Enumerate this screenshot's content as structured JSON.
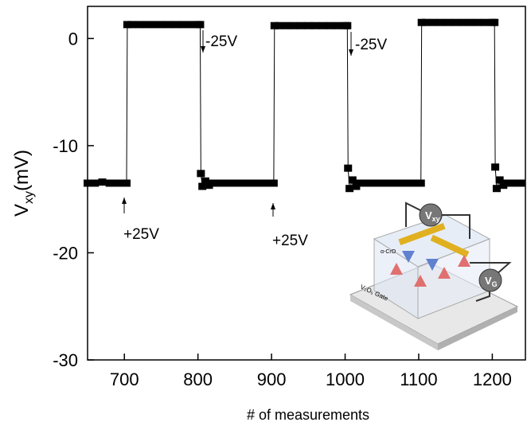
{
  "chart_data": {
    "type": "line",
    "ylabel": {
      "base": "V",
      "sub": "xy",
      "unit": "(mV)"
    },
    "xlabel": "# of measurements",
    "x": [
      650,
      660,
      670,
      680,
      690,
      700,
      703,
      704,
      710,
      720,
      730,
      740,
      750,
      760,
      770,
      780,
      790,
      800,
      803,
      804,
      806,
      810,
      815,
      820,
      830,
      840,
      850,
      860,
      870,
      880,
      890,
      900,
      903,
      904,
      910,
      920,
      930,
      940,
      950,
      960,
      970,
      980,
      990,
      1000,
      1003,
      1004,
      1006,
      1010,
      1015,
      1020,
      1030,
      1040,
      1050,
      1060,
      1070,
      1080,
      1090,
      1100,
      1103,
      1104,
      1110,
      1120,
      1130,
      1140,
      1150,
      1160,
      1170,
      1180,
      1190,
      1200,
      1203,
      1204,
      1206,
      1210,
      1215,
      1220,
      1230,
      1240
    ],
    "series": [
      {
        "color": "#000000",
        "values": [
          -13.5,
          -13.5,
          -13.4,
          -13.5,
          -13.5,
          -13.5,
          -13.5,
          1.3,
          1.3,
          1.3,
          1.3,
          1.3,
          1.3,
          1.3,
          1.3,
          1.3,
          1.3,
          1.3,
          1.3,
          -12.6,
          -13.8,
          -13.3,
          -13.7,
          -13.5,
          -13.5,
          -13.5,
          -13.5,
          -13.5,
          -13.5,
          -13.5,
          -13.5,
          -13.5,
          -13.5,
          1.2,
          1.2,
          1.2,
          1.2,
          1.2,
          1.2,
          1.2,
          1.2,
          1.2,
          1.2,
          1.2,
          1.2,
          -12.1,
          -14.0,
          -13.2,
          -13.8,
          -13.5,
          -13.5,
          -13.5,
          -13.5,
          -13.5,
          -13.5,
          -13.5,
          -13.5,
          -13.5,
          -13.5,
          1.5,
          1.5,
          1.5,
          1.5,
          1.5,
          1.5,
          1.5,
          1.5,
          1.5,
          1.5,
          1.5,
          1.5,
          -12.0,
          -14.0,
          -13.2,
          -13.7,
          -13.5,
          -13.5,
          -13.5
        ]
      }
    ],
    "xlim": [
      650,
      1245
    ],
    "ylim": [
      -30,
      3
    ],
    "xticks": [
      700,
      800,
      900,
      1000,
      1100,
      1200
    ],
    "yticks": [
      0,
      -10,
      -20,
      -30
    ],
    "annotations": [
      "+25V",
      "-25V",
      "+25V",
      "-25V"
    ],
    "inset": {
      "labels": [
        {
          "base": "V",
          "sub": "xy"
        },
        {
          "base": "V",
          "sub": "G"
        }
      ],
      "material": "α-CrO",
      "gate": "V₂O₅ Gate"
    }
  }
}
